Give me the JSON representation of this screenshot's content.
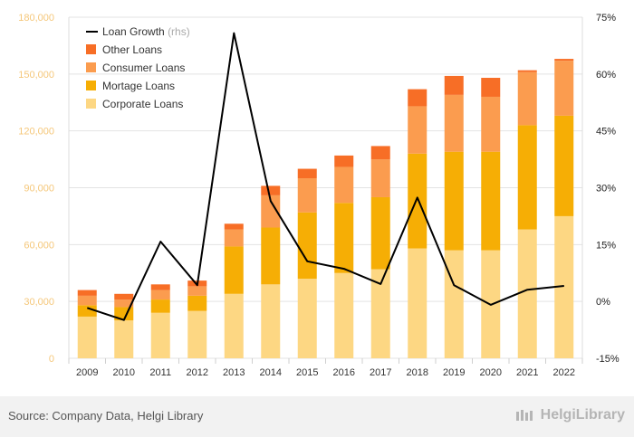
{
  "chart_data": {
    "type": "bar",
    "categories": [
      "2009",
      "2010",
      "2011",
      "2012",
      "2013",
      "2014",
      "2015",
      "2016",
      "2017",
      "2018",
      "2019",
      "2020",
      "2021",
      "2022"
    ],
    "series": [
      {
        "name": "Corporate Loans",
        "color": "#fdd783",
        "values": [
          22000,
          20000,
          24000,
          25000,
          34000,
          39000,
          42000,
          45000,
          47000,
          58000,
          57000,
          57000,
          68000,
          75000
        ]
      },
      {
        "name": "Mortage Loans",
        "color": "#f6ae05",
        "values": [
          6000,
          7000,
          7000,
          8000,
          25000,
          30000,
          35000,
          37000,
          38000,
          50000,
          52000,
          52000,
          55000,
          53000
        ]
      },
      {
        "name": "Consumer Loans",
        "color": "#fb9c4f",
        "values": [
          5000,
          4000,
          5000,
          5000,
          9000,
          17000,
          18000,
          19000,
          20000,
          25000,
          30000,
          29000,
          28000,
          29000
        ]
      },
      {
        "name": "Other Loans",
        "color": "#f76e26",
        "values": [
          3000,
          3000,
          3000,
          3000,
          3000,
          5000,
          5000,
          6000,
          7000,
          9000,
          10000,
          10000,
          1000,
          1000
        ]
      }
    ],
    "line": {
      "name": "Loan Growth",
      "suffix": "(rhs)",
      "color": "#000000",
      "values": [
        -1.7,
        -4.9,
        15.8,
        4.3,
        70.8,
        26.5,
        10.6,
        8.6,
        4.6,
        27.4,
        4.3,
        -0.9,
        3.1,
        4.1
      ]
    },
    "y_left": {
      "ticks": [
        0,
        30000,
        60000,
        90000,
        120000,
        150000,
        180000
      ],
      "tick_labels": [
        "0",
        "30,000",
        "60,000",
        "90,000",
        "120,000",
        "150,000",
        "180,000"
      ],
      "ylim": [
        0,
        180000
      ]
    },
    "y_right": {
      "ticks": [
        -15,
        0,
        15,
        30,
        45,
        60,
        75
      ],
      "tick_labels": [
        "-15%",
        "0%",
        "15%",
        "30%",
        "45%",
        "60%",
        "75%"
      ],
      "ylim": [
        -15,
        75
      ]
    },
    "legend_placement": "top-left",
    "grid": true
  },
  "footer": {
    "source": "Source: Company Data, Helgi Library",
    "brand": "HelgiLibrary"
  }
}
